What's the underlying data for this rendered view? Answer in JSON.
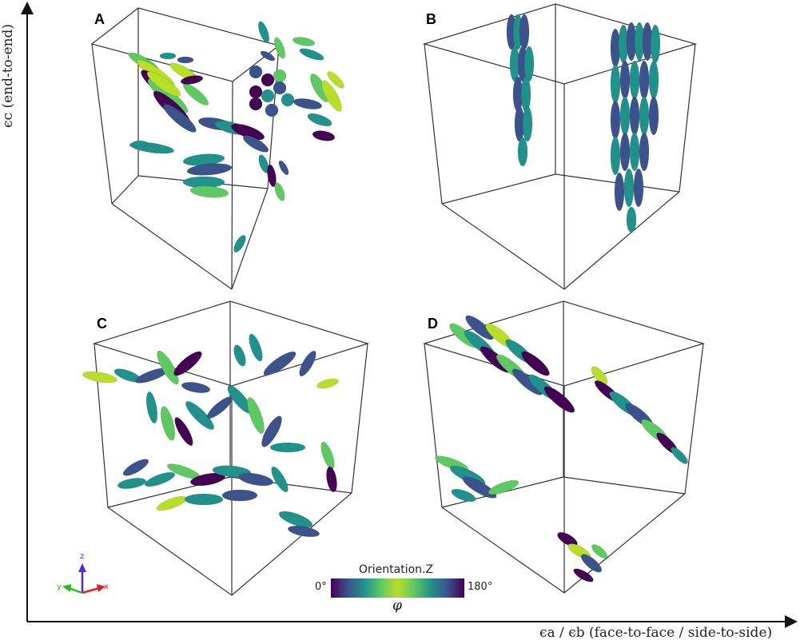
{
  "panels": [
    {
      "label": "A"
    },
    {
      "label": "B"
    },
    {
      "label": "C"
    },
    {
      "label": "D"
    }
  ],
  "axes": {
    "y_label": "ϵc (end-to-end)",
    "x_label": "ϵa / ϵb (face-to-face / side-to-side)"
  },
  "colorbar": {
    "title": "Orientation.Z",
    "min_label": "0°",
    "max_label": "180°",
    "variable": "φ",
    "colormap": [
      "#440154",
      "#3b528b",
      "#21918c",
      "#5ec962",
      "#b8de29",
      "#5ec962",
      "#21918c",
      "#3b528b",
      "#440154"
    ]
  },
  "triad": {
    "z": "z",
    "y": "y",
    "x": "x",
    "z_color": "#5522dd",
    "y_color": "#22bb22",
    "x_color": "#e02020"
  }
}
